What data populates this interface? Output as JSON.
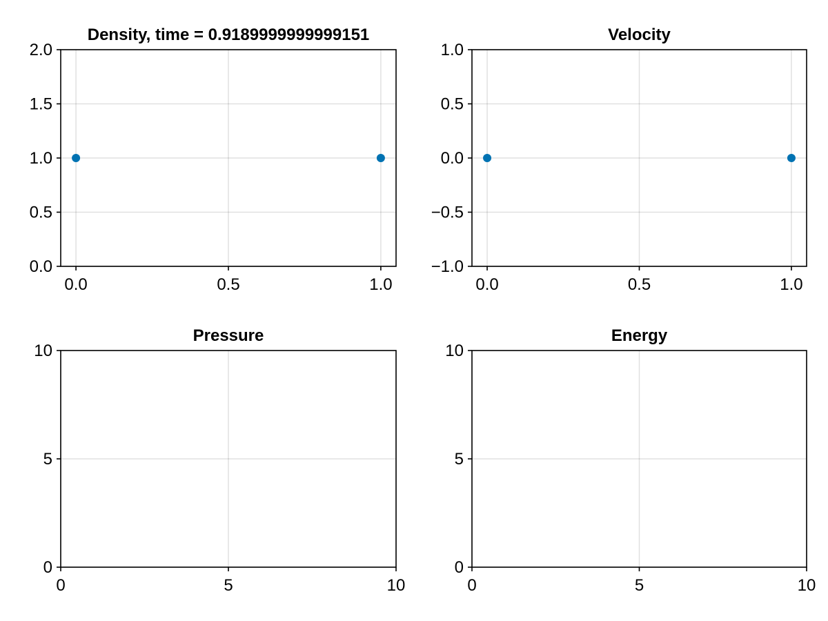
{
  "chart_data": [
    {
      "type": "scatter",
      "title": "Density, time = 0.9189999999999151",
      "xlabel": "",
      "ylabel": "",
      "xlim": [
        -0.05,
        1.05
      ],
      "ylim": [
        0,
        2
      ],
      "xticks": [
        0,
        0.5,
        1
      ],
      "xtick_labels": [
        "0.0",
        "0.5",
        "1.0"
      ],
      "yticks": [
        0,
        0.5,
        1,
        1.5,
        2
      ],
      "ytick_labels": [
        "0.0",
        "0.5",
        "1.0",
        "1.5",
        "2.0"
      ],
      "grid": true,
      "series": [
        {
          "x": [
            0,
            1
          ],
          "y": [
            1,
            1
          ],
          "color": "#0072b2"
        }
      ]
    },
    {
      "type": "scatter",
      "title": "Velocity",
      "xlabel": "",
      "ylabel": "",
      "xlim": [
        -0.05,
        1.05
      ],
      "ylim": [
        -1,
        1
      ],
      "xticks": [
        0,
        0.5,
        1
      ],
      "xtick_labels": [
        "0.0",
        "0.5",
        "1.0"
      ],
      "yticks": [
        -1,
        -0.5,
        0,
        0.5,
        1
      ],
      "ytick_labels": [
        "−1.0",
        "−0.5",
        "0.0",
        "0.5",
        "1.0"
      ],
      "grid": true,
      "series": [
        {
          "x": [
            0,
            1
          ],
          "y": [
            0,
            0
          ],
          "color": "#0072b2"
        }
      ]
    },
    {
      "type": "scatter",
      "title": "Pressure",
      "xlabel": "",
      "ylabel": "",
      "xlim": [
        0,
        10
      ],
      "ylim": [
        0,
        10
      ],
      "xticks": [
        0,
        5,
        10
      ],
      "xtick_labels": [
        "0",
        "5",
        "10"
      ],
      "yticks": [
        0,
        5,
        10
      ],
      "ytick_labels": [
        "0",
        "5",
        "10"
      ],
      "grid": true,
      "series": []
    },
    {
      "type": "scatter",
      "title": "Energy",
      "xlabel": "",
      "ylabel": "",
      "xlim": [
        0,
        10
      ],
      "ylim": [
        0,
        10
      ],
      "xticks": [
        0,
        5,
        10
      ],
      "xtick_labels": [
        "0",
        "5",
        "10"
      ],
      "yticks": [
        0,
        5,
        10
      ],
      "ytick_labels": [
        "0",
        "5",
        "10"
      ],
      "grid": true,
      "series": []
    }
  ]
}
